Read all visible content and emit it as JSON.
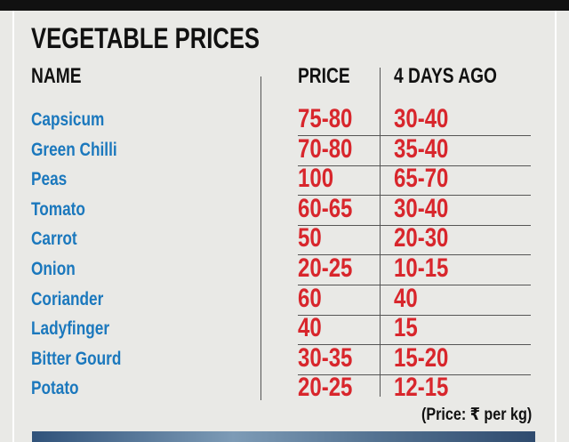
{
  "title": "VEGETABLE PRICES",
  "table": {
    "headers": [
      "NAME",
      "PRICE",
      "4 DAYS AGO"
    ],
    "rows": [
      [
        "Capsicum",
        "75-80",
        "30-40"
      ],
      [
        "Green Chilli",
        "70-80",
        "35-40"
      ],
      [
        "Peas",
        "100",
        "65-70"
      ],
      [
        "Tomato",
        "60-65",
        "30-40"
      ],
      [
        "Carrot",
        "50",
        "20-30"
      ],
      [
        "Onion",
        "20-25",
        "10-15"
      ],
      [
        "Coriander",
        "60",
        "40"
      ],
      [
        "Ladyfinger",
        "40",
        "15"
      ],
      [
        "Bitter Gourd",
        "30-35",
        "15-20"
      ],
      [
        "Potato",
        "20-25",
        "12-15"
      ]
    ]
  },
  "footnote": "(Price: ₹ per kg)"
}
